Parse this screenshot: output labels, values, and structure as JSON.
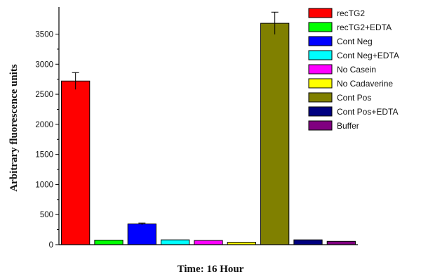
{
  "chart_data": {
    "type": "bar",
    "title": "",
    "xlabel": "Time: 16 Hour",
    "ylabel": "Arbitrary fluorescence units",
    "ylim": [
      0,
      3950
    ],
    "yticks": [
      0,
      500,
      1000,
      1500,
      2000,
      2500,
      3000,
      3500
    ],
    "grid": false,
    "legend_position": "right",
    "categories": [
      "recTG2",
      "recTG2+EDTA",
      "Cont Neg",
      "Cont Neg+EDTA",
      "No Casein",
      "No Cadaverine",
      "Cont Pos",
      "Cont Pos+EDTA",
      "Buffer"
    ],
    "series": [
      {
        "name": "recTG2",
        "value": 2720,
        "error": 140,
        "color": "#ff0000"
      },
      {
        "name": "recTG2+EDTA",
        "value": 75,
        "error": 0,
        "color": "#00ff00"
      },
      {
        "name": "Cont Neg",
        "value": 345,
        "error": 15,
        "color": "#0000ff"
      },
      {
        "name": "Cont Neg+EDTA",
        "value": 80,
        "error": 0,
        "color": "#00ffff"
      },
      {
        "name": "No Casein",
        "value": 70,
        "error": 0,
        "color": "#ff00ff"
      },
      {
        "name": "No Cadaverine",
        "value": 40,
        "error": 0,
        "color": "#ffff00"
      },
      {
        "name": "Cont Pos",
        "value": 3680,
        "error": 185,
        "color": "#808000"
      },
      {
        "name": "Cont Pos+EDTA",
        "value": 80,
        "error": 0,
        "color": "#000080"
      },
      {
        "name": "Buffer",
        "value": 55,
        "error": 0,
        "color": "#800080"
      }
    ]
  }
}
